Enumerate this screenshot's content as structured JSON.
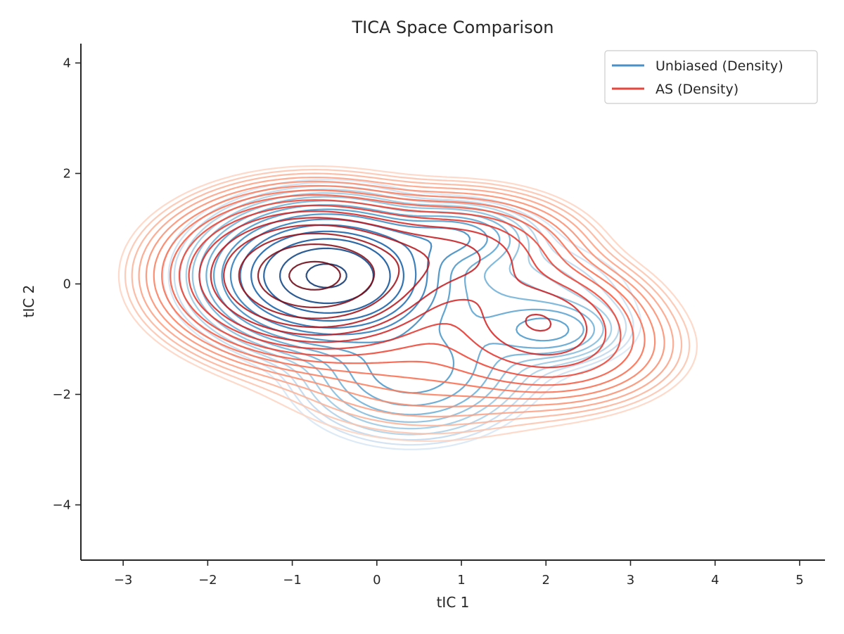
{
  "chart_data": {
    "type": "contour",
    "title": "TICA Space Comparison",
    "xlabel": "tIC 1",
    "ylabel": "tIC 2",
    "xlim": [
      -3.5,
      5.3
    ],
    "ylim": [
      -5.0,
      4.35
    ],
    "xticks": [
      -3,
      -2,
      -1,
      0,
      1,
      2,
      3,
      4,
      5
    ],
    "yticks": [
      -4,
      -2,
      0,
      2,
      4
    ],
    "xtick_labels": [
      "−3",
      "−2",
      "−1",
      "0",
      "1",
      "2",
      "3",
      "4",
      "5"
    ],
    "ytick_labels": [
      "−4",
      "−2",
      "0",
      "2",
      "4"
    ],
    "grid": false,
    "legend_position": "upper-right",
    "series": [
      {
        "name": "Unbiased (Density)",
        "colormap": "Blues",
        "legend_color": "#4a90c8",
        "components": [
          {
            "cx": -0.6,
            "cy": 0.15,
            "sx": 0.62,
            "sy": 0.56,
            "w": 1.0
          },
          {
            "cx": 0.9,
            "cy": 0.85,
            "sx": 0.45,
            "sy": 0.3,
            "w": 0.13
          },
          {
            "cx": 2.05,
            "cy": -0.85,
            "sx": 0.4,
            "sy": 0.28,
            "w": 0.09
          },
          {
            "cx": 0.4,
            "cy": -1.6,
            "sx": 0.65,
            "sy": 0.6,
            "w": 0.12
          },
          {
            "cx": 1.3,
            "cy": -0.4,
            "sx": 0.9,
            "sy": 0.7,
            "w": 0.05
          }
        ]
      },
      {
        "name": "AS (Density)",
        "colormap": "Reds",
        "legend_color": "#e8453c",
        "components": [
          {
            "cx": -0.75,
            "cy": 0.15,
            "sx": 0.72,
            "sy": 0.62,
            "w": 1.0
          },
          {
            "cx": 1.0,
            "cy": 0.55,
            "sx": 0.65,
            "sy": 0.5,
            "w": 0.22
          },
          {
            "cx": 1.9,
            "cy": -0.55,
            "sx": 0.6,
            "sy": 0.5,
            "w": 0.18
          },
          {
            "cx": 2.2,
            "cy": -1.2,
            "sx": 0.65,
            "sy": 0.5,
            "w": 0.1
          },
          {
            "cx": 0.6,
            "cy": -1.2,
            "sx": 1.0,
            "sy": 0.8,
            "w": 0.05
          }
        ]
      }
    ]
  }
}
